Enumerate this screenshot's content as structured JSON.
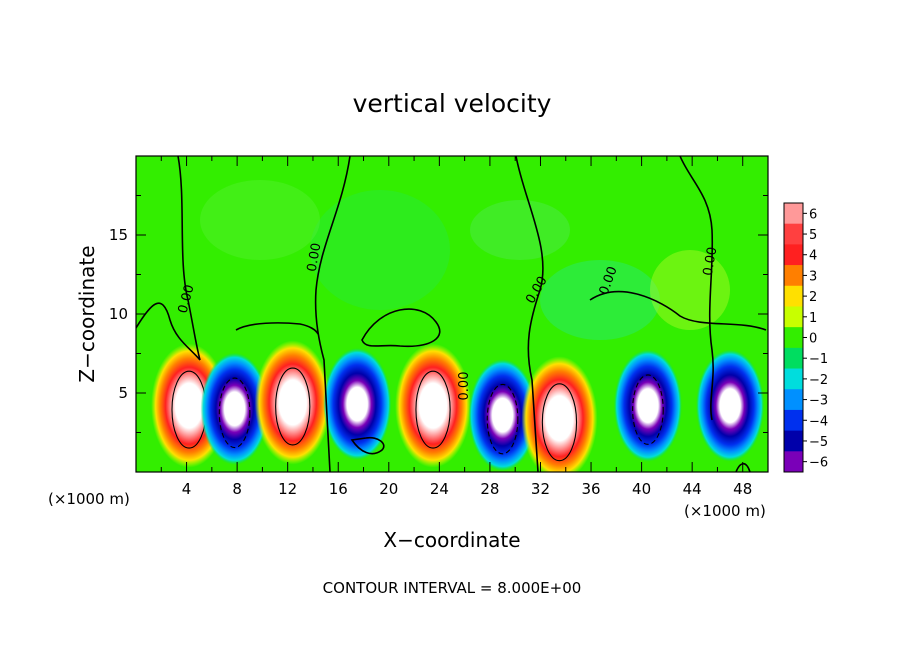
{
  "chart_data": {
    "type": "heatmap",
    "title": "vertical velocity",
    "xlabel": "X−coordinate",
    "ylabel": "Z−coordinate",
    "x_unit": "(×1000 m)",
    "x_ticks": [
      4,
      8,
      12,
      16,
      20,
      24,
      28,
      32,
      36,
      40,
      44,
      48
    ],
    "y_ticks": [
      5,
      10,
      15
    ],
    "xlim": [
      0,
      50
    ],
    "ylim": [
      0,
      20
    ],
    "colorbar": {
      "labels": [
        "6",
        "5",
        "4",
        "3",
        "2",
        "1",
        "0",
        "−1",
        "−2",
        "−3",
        "−4",
        "−5",
        "−6"
      ],
      "colors": [
        "#ff9999",
        "#ff4040",
        "#ff2020",
        "#ff7f00",
        "#ffe000",
        "#c8ff00",
        "#33ee00",
        "#00dd60",
        "#00dddd",
        "#0090ff",
        "#0030ee",
        "#0000aa",
        "#7a00b8"
      ],
      "range": [
        -6,
        6
      ]
    },
    "contour_label": "0.00",
    "contour_interval_text": "CONTOUR INTERVAL = 8.000E+00",
    "cells": [
      {
        "x": 4.2,
        "z": 4.2,
        "sign": "up",
        "peak": 14
      },
      {
        "x": 7.8,
        "z": 4.0,
        "sign": "down",
        "peak": 10
      },
      {
        "x": 12.4,
        "z": 4.4,
        "sign": "up",
        "peak": 16
      },
      {
        "x": 17.5,
        "z": 4.3,
        "sign": "down",
        "peak": 7
      },
      {
        "x": 23.5,
        "z": 4.2,
        "sign": "up",
        "peak": 11
      },
      {
        "x": 29.0,
        "z": 3.6,
        "sign": "down",
        "peak": 9
      },
      {
        "x": 33.5,
        "z": 3.4,
        "sign": "up",
        "peak": 9
      },
      {
        "x": 40.5,
        "z": 4.2,
        "sign": "down",
        "peak": 8
      },
      {
        "x": 47.0,
        "z": 4.2,
        "sign": "down",
        "peak": 7
      }
    ]
  }
}
